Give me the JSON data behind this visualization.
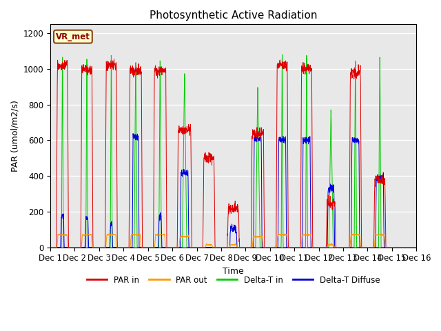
{
  "title": "Photosynthetic Active Radiation",
  "ylabel": "PAR (umol/m2/s)",
  "xlabel": "Time",
  "legend_label": "VR_met",
  "ylim": [
    0,
    1250
  ],
  "xlim": [
    0,
    15
  ],
  "xtick_labels": [
    "Dec 1",
    "Dec 2",
    "Dec 3",
    "Dec 4",
    "Dec 5",
    "Dec 6",
    "Dec 7",
    "Dec 8",
    "Dec 9",
    "Dec 10",
    "Dec 11",
    "Dec 12",
    "Dec 13",
    "Dec 14",
    "Dec 15",
    "Dec 16"
  ],
  "series_labels": [
    "PAR in",
    "PAR out",
    "Delta-T in",
    "Delta-T Diffuse"
  ],
  "colors": [
    "#dd0000",
    "#ff9900",
    "#00cc00",
    "#0000dd"
  ],
  "background_color": "#e8e8e8",
  "title_fontsize": 11,
  "label_fontsize": 9,
  "grid_color": "#ffffff",
  "par_in_peaks": [
    1020,
    1000,
    1020,
    990,
    990,
    660,
    500,
    220,
    640,
    1020,
    1000,
    250,
    980,
    380,
    0
  ],
  "par_out_peaks": [
    70,
    70,
    70,
    70,
    70,
    60,
    15,
    15,
    60,
    70,
    70,
    15,
    70,
    70,
    0
  ],
  "delta_t_peaks": [
    1160,
    1165,
    1165,
    1080,
    1120,
    1000,
    0,
    0,
    910,
    1175,
    1165,
    800,
    1110,
    1150,
    0
  ],
  "delta_d_peaks": [
    175,
    165,
    130,
    620,
    175,
    420,
    0,
    105,
    610,
    600,
    600,
    330,
    600,
    390,
    0
  ],
  "delta_d_widths": [
    0.15,
    0.15,
    0.12,
    0.28,
    0.15,
    0.35,
    0,
    0.3,
    0.35,
    0.35,
    0.35,
    0.3,
    0.35,
    0.35,
    0
  ],
  "par_in_widths": [
    0.5,
    0.5,
    0.5,
    0.55,
    0.55,
    0.6,
    0.5,
    0.5,
    0.55,
    0.5,
    0.5,
    0.4,
    0.5,
    0.5,
    0
  ],
  "par_out_widths": [
    0.45,
    0.45,
    0.45,
    0.45,
    0.45,
    0.45,
    0.3,
    0.3,
    0.45,
    0.45,
    0.45,
    0.3,
    0.45,
    0.45,
    0
  ],
  "delta_t_widths": [
    0.08,
    0.08,
    0.08,
    0.12,
    0.1,
    0.18,
    0,
    0,
    0.18,
    0.08,
    0.08,
    0.18,
    0.1,
    0.1,
    0
  ]
}
